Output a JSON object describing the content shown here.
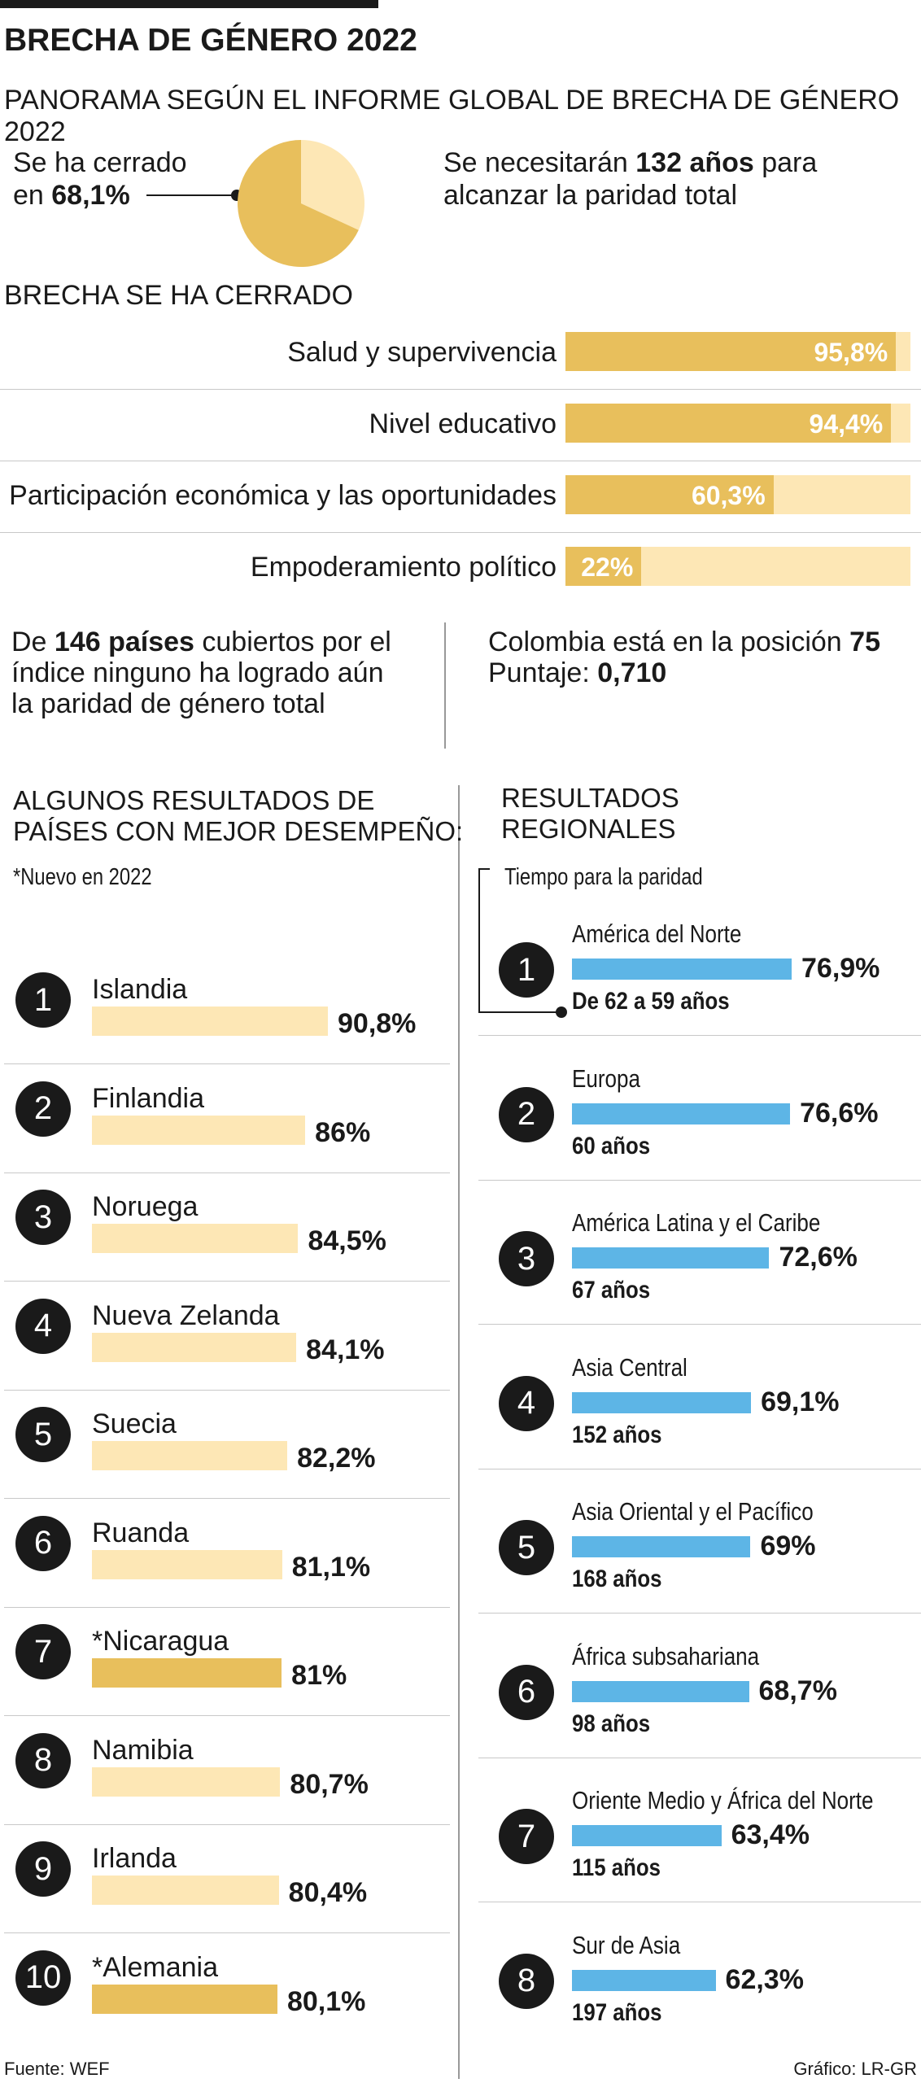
{
  "title": "BRECHA DE GÉNERO 2022",
  "subtitle": "PANORAMA SEGÚN EL INFORME GLOBAL DE BRECHA DE GÉNERO 2022",
  "summary": {
    "closed_line1": "Se ha cerrado",
    "closed_line2_pre": "en ",
    "closed_value": "68,1%",
    "need_pre": "Se necesitarán ",
    "need_value": "132 años",
    "need_post": " para",
    "need_line2": "alcanzar la paridad total"
  },
  "colors": {
    "gold": "#e8bf5c",
    "gold_light": "#fde7b5",
    "blue": "#5db5e6",
    "dark": "#1a1a1a"
  },
  "chart_data": [
    {
      "type": "pie",
      "values": [
        68.1,
        31.9
      ],
      "colors": [
        "#e8bf5c",
        "#fde7b5"
      ]
    },
    {
      "type": "bar",
      "title": "BRECHA SE HA CERRADO",
      "categories": [
        "Salud y supervivencia",
        "Nivel educativo",
        "Participación económica y las oportunidades",
        "Empoderamiento político"
      ],
      "values": [
        95.8,
        94.4,
        60.3,
        22
      ],
      "labels": [
        "95,8%",
        "94,4%",
        "60,3%",
        "22%"
      ],
      "ylim": [
        0,
        100
      ]
    },
    {
      "type": "bar",
      "title": "ALGUNOS RESULTADOS DE PAÍSES CON MEJOR DESEMPEÑO:",
      "note": "*Nuevo en 2022",
      "ranks": [
        "1",
        "2",
        "3",
        "4",
        "5",
        "6",
        "7",
        "8",
        "9",
        "10"
      ],
      "categories": [
        "Islandia",
        "Finlandia",
        "Noruega",
        "Nueva Zelanda",
        "Suecia",
        "Ruanda",
        "*Nicaragua",
        "Namibia",
        "Irlanda",
        "*Alemania"
      ],
      "values": [
        90.8,
        86,
        84.5,
        84.1,
        82.2,
        81.1,
        81,
        80.7,
        80.4,
        80.1
      ],
      "labels": [
        "90,8%",
        "86%",
        "84,5%",
        "84,1%",
        "82,2%",
        "81,1%",
        "81%",
        "80,7%",
        "80,4%",
        "80,1%"
      ],
      "highlight": [
        false,
        false,
        false,
        false,
        false,
        false,
        true,
        false,
        false,
        true
      ]
    },
    {
      "type": "bar",
      "title": "RESULTADOS REGIONALES",
      "note": "Tiempo para la paridad",
      "ranks": [
        "1",
        "2",
        "3",
        "4",
        "5",
        "6",
        "7",
        "8"
      ],
      "categories": [
        "América del Norte",
        "Europa",
        "América Latina y el Caribe",
        "Asia Central",
        "Asia Oriental y el Pacífico",
        "África subsahariana",
        "Oriente Medio y África del Norte",
        "Sur de Asia"
      ],
      "values": [
        76.9,
        76.6,
        72.6,
        69.1,
        69,
        68.7,
        63.4,
        62.3
      ],
      "labels": [
        "76,9%",
        "76,6%",
        "72,6%",
        "69,1%",
        "69%",
        "68,7%",
        "63,4%",
        "62,3%"
      ],
      "years": [
        "De 62 a 59 años",
        "60 años",
        "67 años",
        "152 años",
        "168 años",
        "98 años",
        "115 años",
        "197 años"
      ]
    }
  ],
  "notes": {
    "left_line1_pre": "De ",
    "left_num": "146 países",
    "left_line1_post": " cubiertos por el",
    "left_line2": "índice ninguno ha logrado aún",
    "left_line3": "la paridad de género total",
    "right_line1_pre": "Colombia está en la posición ",
    "right_pos": "75",
    "right_line2_pre": "Puntaje: ",
    "right_score": "0,710"
  },
  "countries_title": [
    "ALGUNOS RESULTADOS DE",
    "PAÍSES CON MEJOR DESEMPEÑO:"
  ],
  "regions_title": [
    "RESULTADOS",
    "REGIONALES"
  ],
  "footer": {
    "source": "Fuente: WEF",
    "credit": "Gráfico: LR-GR"
  }
}
